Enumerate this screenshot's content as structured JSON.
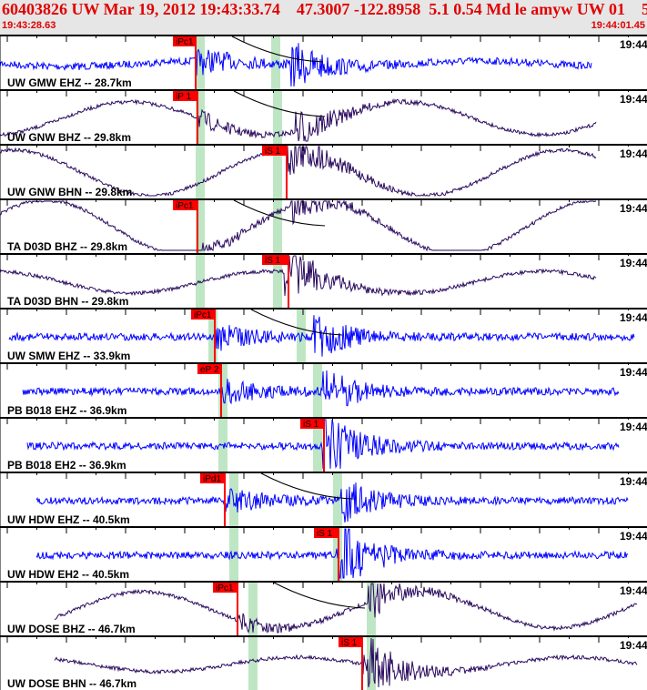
{
  "header": {
    "title": "60403826 UW Mar 19, 2012 19:43:33.74    47.3007 -122.8958  5.1 0.54 Md le amyw UW 01    5",
    "start_time": "19:43:28.63",
    "end_time": "19:44:01.45"
  },
  "tick_label": "19:44",
  "colors": {
    "header_bg": "#e6e6e6",
    "header_text": "#e00000",
    "pick_flag": "#ff0000",
    "window": "#bfe6c4",
    "short_period": "#0000ff",
    "broadband": "#2a0a5e",
    "coda": "#000000"
  },
  "channels": [
    {
      "label": "UW GMW EHZ -- 28.7km",
      "pick": "iPc1",
      "type": "short_period"
    },
    {
      "label": "UW GNW BHZ -- 29.8km",
      "pick": "iP 1",
      "type": "broadband"
    },
    {
      "label": "UW GNW BHN -- 29.8km",
      "pick": "iS 1",
      "type": "broadband"
    },
    {
      "label": "TA D03D BHZ -- 29.8km",
      "pick": "iPc1",
      "type": "broadband"
    },
    {
      "label": "TA D03D BHN -- 29.8km",
      "pick": "iS 1",
      "type": "broadband"
    },
    {
      "label": "UW SMW EHZ -- 33.9km",
      "pick": "iPc1",
      "type": "short_period"
    },
    {
      "label": "PB B018 EHZ -- 36.9km",
      "pick": "eP 2",
      "type": "short_period"
    },
    {
      "label": "PB B018 EH2 -- 36.9km",
      "pick": "iS 1",
      "type": "short_period"
    },
    {
      "label": "UW HDW EHZ -- 40.5km",
      "pick": "iPd1",
      "type": "short_period"
    },
    {
      "label": "UW HDW EH2 -- 40.5km",
      "pick": "iS 1",
      "type": "short_period"
    },
    {
      "label": "UW DOSE BHZ -- 46.7km",
      "pick": "iPc1",
      "type": "broadband"
    },
    {
      "label": "UW DOSE BHN -- 46.7km",
      "pick": "iS 1",
      "type": "broadband"
    }
  ]
}
